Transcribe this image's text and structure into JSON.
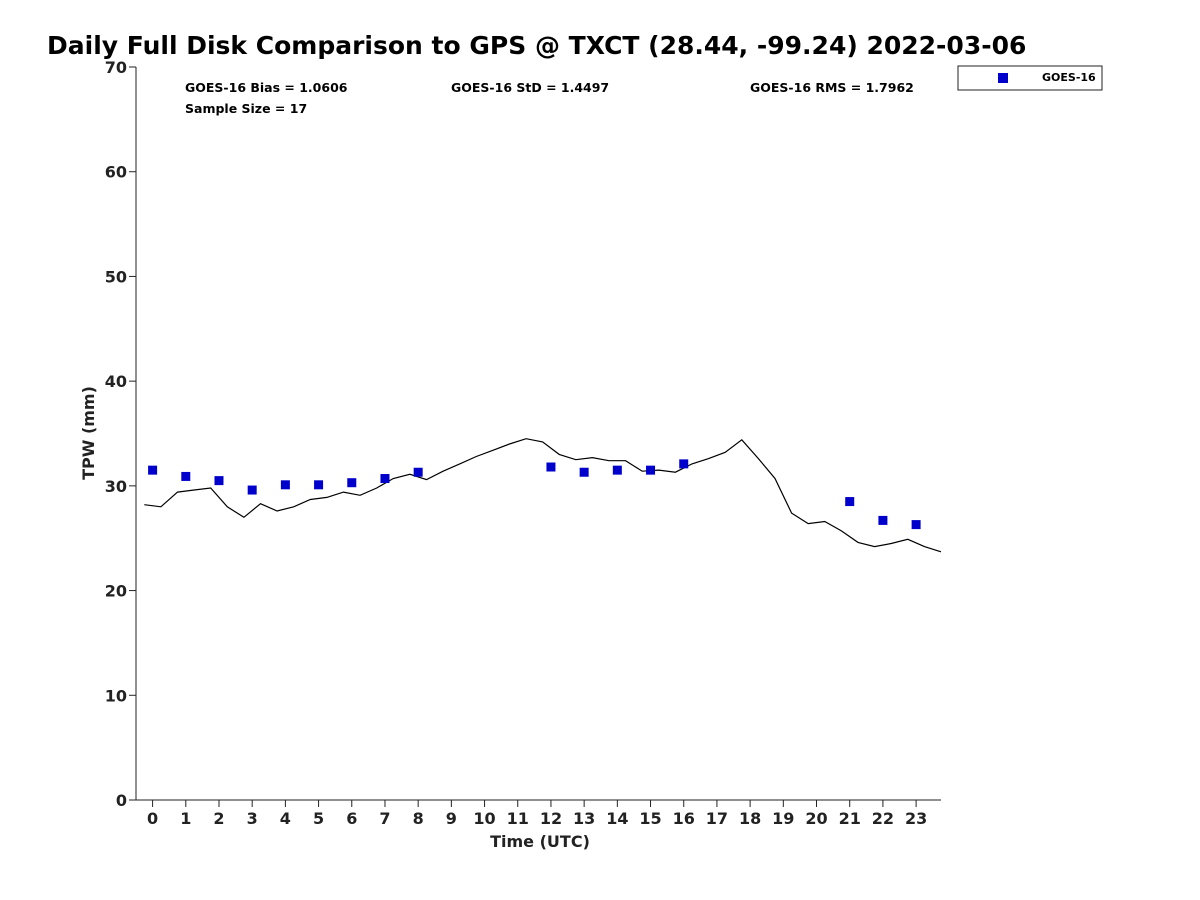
{
  "chart_data": {
    "type": "line",
    "title": "Daily Full Disk Comparison to GPS @ TXCT (28.44, -99.24) 2022-03-06",
    "xlabel": "Time (UTC)",
    "ylabel": "TPW (mm)",
    "xlim": [
      -0.5,
      23.75
    ],
    "ylim": [
      0,
      70
    ],
    "x_ticks": [
      "0",
      "1",
      "2",
      "3",
      "4",
      "5",
      "6",
      "7",
      "8",
      "9",
      "10",
      "11",
      "12",
      "13",
      "14",
      "15",
      "16",
      "17",
      "18",
      "19",
      "20",
      "21",
      "22",
      "23"
    ],
    "y_ticks": [
      "0",
      "10",
      "20",
      "30",
      "40",
      "50",
      "60",
      "70"
    ],
    "grid": false,
    "legend_position": "top-right",
    "stats": {
      "bias": "GOES-16 Bias = 1.0606",
      "std": "GOES-16 StD = 1.4497",
      "rms": "GOES-16 RMS = 1.7962",
      "sample": "Sample Size = 17"
    },
    "series": [
      {
        "kind": "line",
        "color": "#000000",
        "x": [
          -0.25,
          0.25,
          0.75,
          1.25,
          1.75,
          2.25,
          2.75,
          3.25,
          3.75,
          4.25,
          4.75,
          5.25,
          5.75,
          6.25,
          6.75,
          7.25,
          7.75,
          8.25,
          8.75,
          9.25,
          9.75,
          10.25,
          10.75,
          11.25,
          11.75,
          12.25,
          12.75,
          13.25,
          13.75,
          14.25,
          14.75,
          15.25,
          15.75,
          16.25,
          16.75,
          17.25,
          17.75,
          18.25,
          18.75,
          19.25,
          19.75,
          20.25,
          20.75,
          21.25,
          21.75,
          22.25,
          22.75,
          23.25,
          23.75
        ],
        "y": [
          28.2,
          28.0,
          29.4,
          29.6,
          29.8,
          28.0,
          27.0,
          28.3,
          27.6,
          28.0,
          28.7,
          28.9,
          29.4,
          29.1,
          29.8,
          30.7,
          31.1,
          30.6,
          31.4,
          32.1,
          32.8,
          33.4,
          34.0,
          34.5,
          34.2,
          33.0,
          32.5,
          32.7,
          32.4,
          32.4,
          31.4,
          31.5,
          31.3,
          32.1,
          32.6,
          33.2,
          34.4,
          32.6,
          30.7,
          27.4,
          26.4,
          26.6,
          25.7,
          24.6,
          24.2,
          24.5,
          24.9,
          24.2,
          23.7
        ]
      },
      {
        "name": "GOES-16",
        "kind": "scatter",
        "color": "#0000cc",
        "x": [
          0,
          1,
          2,
          3,
          4,
          5,
          6,
          7,
          8,
          12,
          13,
          14,
          15,
          16,
          21,
          22,
          23
        ],
        "y": [
          31.5,
          30.9,
          30.5,
          29.6,
          30.1,
          30.1,
          30.3,
          30.7,
          31.3,
          31.8,
          31.3,
          31.5,
          31.5,
          32.1,
          28.5,
          26.7,
          26.3
        ]
      }
    ]
  }
}
